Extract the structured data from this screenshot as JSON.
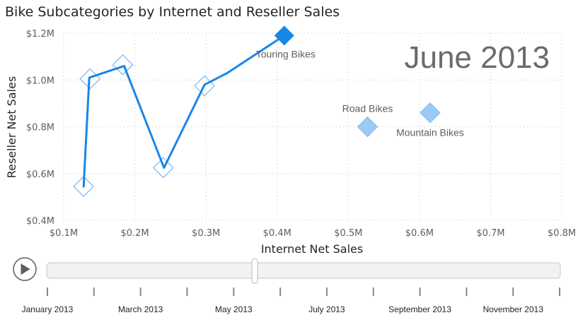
{
  "chart_data": {
    "type": "scatter",
    "title": "Bike Subcategories by Internet and Reseller Sales",
    "xlabel": "Internet Net Sales",
    "ylabel": "Reseller Net Sales",
    "xlim": [
      0.1,
      0.8
    ],
    "ylim": [
      0.4,
      1.2
    ],
    "x_ticks": [
      {
        "v": 0.1,
        "label": "$0.1M"
      },
      {
        "v": 0.2,
        "label": "$0.2M"
      },
      {
        "v": 0.3,
        "label": "$0.3M"
      },
      {
        "v": 0.4,
        "label": "$0.4M"
      },
      {
        "v": 0.5,
        "label": "$0.5M"
      },
      {
        "v": 0.6,
        "label": "$0.6M"
      },
      {
        "v": 0.7,
        "label": "$0.7M"
      },
      {
        "v": 0.8,
        "label": "$0.8M"
      }
    ],
    "y_ticks": [
      {
        "v": 0.4,
        "label": "$0.4M"
      },
      {
        "v": 0.6,
        "label": "$0.6M"
      },
      {
        "v": 0.8,
        "label": "$0.8M"
      },
      {
        "v": 1.0,
        "label": "$1.0M"
      },
      {
        "v": 1.2,
        "label": "$1.2M"
      }
    ],
    "grid": true,
    "play_axis_label": "June 2013",
    "trail_series": {
      "name": "Touring Bikes",
      "history_markers": [
        {
          "x": 0.128,
          "y": 0.545
        },
        {
          "x": 0.137,
          "y": 1.005
        },
        {
          "x": 0.183,
          "y": 1.065
        },
        {
          "x": 0.24,
          "y": 0.625
        },
        {
          "x": 0.298,
          "y": 0.975
        }
      ],
      "path": [
        {
          "x": 0.128,
          "y": 0.545
        },
        {
          "x": 0.136,
          "y": 1.01
        },
        {
          "x": 0.185,
          "y": 1.06
        },
        {
          "x": 0.241,
          "y": 0.625
        },
        {
          "x": 0.298,
          "y": 0.98
        },
        {
          "x": 0.33,
          "y": 1.03
        },
        {
          "x": 0.41,
          "y": 1.19
        }
      ],
      "current": {
        "x": 0.41,
        "y": 1.19,
        "label": "Touring Bikes"
      }
    },
    "points": [
      {
        "label": "Road Bikes",
        "x": 0.527,
        "y": 0.8,
        "label_side": "above"
      },
      {
        "label": "Mountain Bikes",
        "x": 0.615,
        "y": 0.86,
        "label_side": "below"
      }
    ],
    "colors": {
      "trail": "#1a86e6",
      "point_fill": "#9ccaf5",
      "point_stroke": "#82bbf0",
      "grid": "#c8c6c4"
    }
  },
  "play_controls": {
    "play_icon": "play-icon",
    "slider_position": 0.405,
    "months": [
      "January 2013",
      "March 2013",
      "May 2013",
      "July 2013",
      "September 2013",
      "November 2013"
    ],
    "tick_count": 12
  }
}
